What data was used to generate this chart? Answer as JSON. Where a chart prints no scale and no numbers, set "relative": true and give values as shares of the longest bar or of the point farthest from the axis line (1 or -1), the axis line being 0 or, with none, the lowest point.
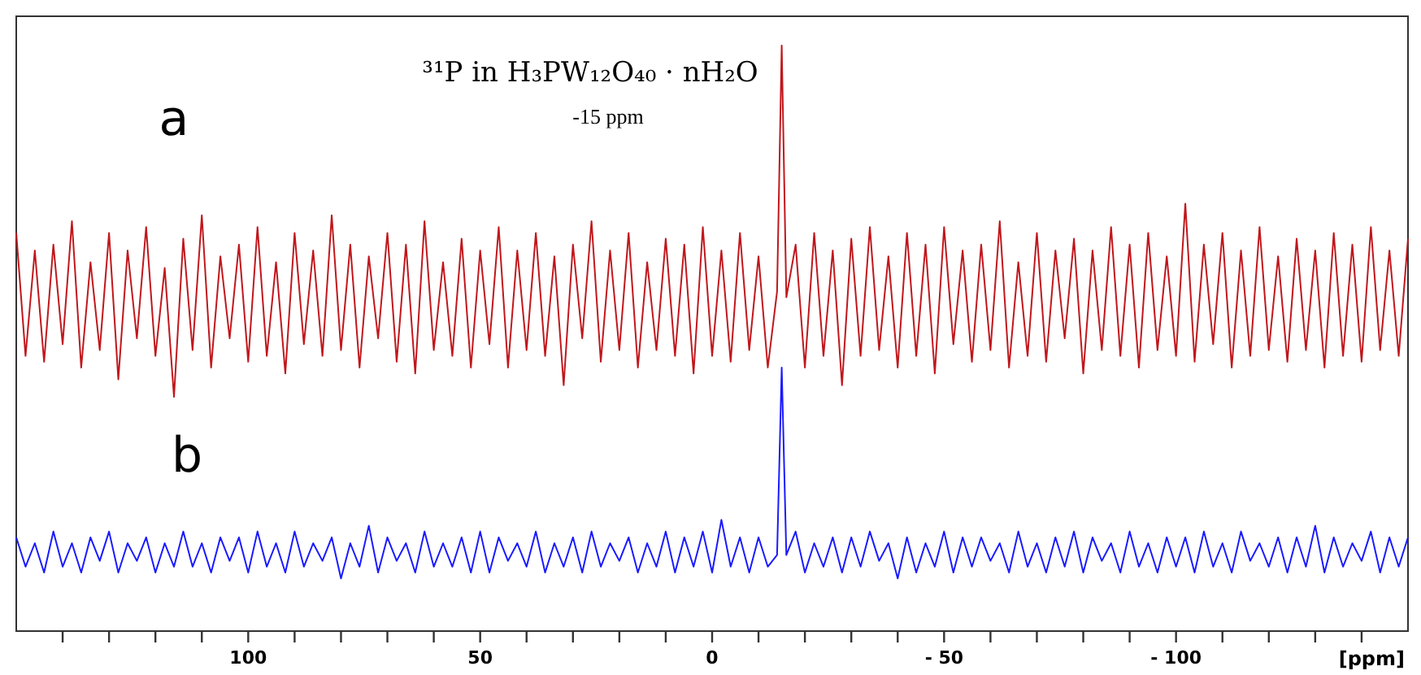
{
  "chart_data": {
    "type": "line",
    "relative": true,
    "title": "³¹P in H₃PW₁₂O₄₀ · nH₂O",
    "annotations": [
      "a",
      "b",
      "-15 ppm"
    ],
    "xlabel": "[ppm]",
    "xlim": [
      150,
      -150
    ],
    "xticks": [
      {
        "value": 140,
        "label": null
      },
      {
        "value": 130,
        "label": null
      },
      {
        "value": 120,
        "label": null
      },
      {
        "value": 110,
        "label": null
      },
      100,
      {
        "value": 90,
        "label": null
      },
      {
        "value": 80,
        "label": null
      },
      {
        "value": 70,
        "label": null
      },
      {
        "value": 60,
        "label": null
      },
      50,
      {
        "value": 40,
        "label": null
      },
      {
        "value": 30,
        "label": null
      },
      {
        "value": 20,
        "label": null
      },
      {
        "value": 10,
        "label": null
      },
      0,
      {
        "value": -10,
        "label": null
      },
      {
        "value": -20,
        "label": null
      },
      {
        "value": -30,
        "label": null
      },
      {
        "value": -40,
        "label": null
      },
      {
        "value": -50,
        "label": "- 50"
      },
      {
        "value": -60,
        "label": null
      },
      {
        "value": -70,
        "label": null
      },
      {
        "value": -80,
        "label": null
      },
      {
        "value": -90,
        "label": null
      },
      {
        "value": -100,
        "label": "- 100"
      },
      {
        "value": -110,
        "label": null
      },
      {
        "value": -120,
        "label": null
      },
      {
        "value": -130,
        "label": null
      },
      {
        "value": -140,
        "label": null
      }
    ],
    "x": [
      150,
      148,
      146,
      144,
      142,
      140,
      138,
      136,
      134,
      132,
      130,
      128,
      126,
      124,
      122,
      120,
      118,
      116,
      114,
      112,
      110,
      108,
      106,
      104,
      102,
      100,
      98,
      96,
      94,
      92,
      90,
      88,
      86,
      84,
      82,
      80,
      78,
      76,
      74,
      72,
      70,
      68,
      66,
      64,
      62,
      60,
      58,
      56,
      54,
      52,
      50,
      48,
      46,
      44,
      42,
      40,
      38,
      36,
      34,
      32,
      30,
      28,
      26,
      24,
      22,
      20,
      18,
      16,
      14,
      12,
      10,
      8,
      6,
      4,
      2,
      0,
      -2,
      -4,
      -6,
      -8,
      -10,
      -12,
      -14,
      -15,
      -16,
      -18,
      -20,
      -22,
      -24,
      -26,
      -28,
      -30,
      -32,
      -34,
      -36,
      -38,
      -40,
      -42,
      -44,
      -46,
      -48,
      -50,
      -52,
      -54,
      -56,
      -58,
      -60,
      -62,
      -64,
      -66,
      -68,
      -70,
      -72,
      -74,
      -76,
      -78,
      -80,
      -82,
      -84,
      -86,
      -88,
      -90,
      -92,
      -94,
      -96,
      -98,
      -100,
      -102,
      -104,
      -106,
      -108,
      -110,
      -112,
      -114,
      -116,
      -118,
      -120,
      -122,
      -124,
      -126,
      -128,
      -130,
      -132,
      -134,
      -136,
      -138,
      -140,
      -142,
      -144,
      -146,
      -148,
      -150
    ],
    "series": [
      {
        "color": "#c0171c",
        "values": [
          0.68,
          0.47,
          0.65,
          0.46,
          0.66,
          0.49,
          0.7,
          0.45,
          0.63,
          0.48,
          0.68,
          0.43,
          0.65,
          0.5,
          0.69,
          0.47,
          0.62,
          0.4,
          0.67,
          0.48,
          0.71,
          0.45,
          0.64,
          0.5,
          0.66,
          0.46,
          0.69,
          0.47,
          0.63,
          0.44,
          0.68,
          0.49,
          0.65,
          0.47,
          0.71,
          0.48,
          0.66,
          0.45,
          0.64,
          0.5,
          0.68,
          0.46,
          0.66,
          0.44,
          0.7,
          0.48,
          0.63,
          0.47,
          0.67,
          0.45,
          0.65,
          0.49,
          0.69,
          0.45,
          0.65,
          0.48,
          0.68,
          0.47,
          0.64,
          0.42,
          0.66,
          0.5,
          0.7,
          0.46,
          0.65,
          0.48,
          0.68,
          0.45,
          0.63,
          0.48,
          0.67,
          0.47,
          0.66,
          0.44,
          0.69,
          0.47,
          0.65,
          0.46,
          0.68,
          0.48,
          0.64,
          0.45,
          0.58,
          1,
          0.57,
          0.66,
          0.45,
          0.68,
          0.47,
          0.65,
          0.42,
          0.67,
          0.47,
          0.69,
          0.48,
          0.64,
          0.45,
          0.68,
          0.47,
          0.66,
          0.44,
          0.69,
          0.49,
          0.65,
          0.46,
          0.66,
          0.48,
          0.7,
          0.45,
          0.63,
          0.47,
          0.68,
          0.46,
          0.65,
          0.5,
          0.67,
          0.44,
          0.65,
          0.48,
          0.69,
          0.47,
          0.66,
          0.45,
          0.68,
          0.48,
          0.64,
          0.47,
          0.73,
          0.46,
          0.66,
          0.49,
          0.68,
          0.45,
          0.65,
          0.47,
          0.69,
          0.48,
          0.64,
          0.46,
          0.67,
          0.48,
          0.65,
          0.45,
          0.68,
          0.47,
          0.66,
          0.46,
          0.69,
          0.48,
          0.65,
          0.47,
          0.67
        ]
      },
      {
        "color": "#1a1aff",
        "values": [
          0.16,
          0.11,
          0.15,
          0.1,
          0.17,
          0.11,
          0.15,
          0.1,
          0.16,
          0.12,
          0.17,
          0.1,
          0.15,
          0.12,
          0.16,
          0.1,
          0.15,
          0.11,
          0.17,
          0.11,
          0.15,
          0.1,
          0.16,
          0.12,
          0.16,
          0.1,
          0.17,
          0.11,
          0.15,
          0.1,
          0.17,
          0.11,
          0.15,
          0.12,
          0.16,
          0.09,
          0.15,
          0.11,
          0.18,
          0.1,
          0.16,
          0.12,
          0.15,
          0.1,
          0.17,
          0.11,
          0.15,
          0.11,
          0.16,
          0.1,
          0.17,
          0.1,
          0.16,
          0.12,
          0.15,
          0.11,
          0.17,
          0.1,
          0.15,
          0.11,
          0.16,
          0.1,
          0.17,
          0.11,
          0.15,
          0.12,
          0.16,
          0.1,
          0.15,
          0.11,
          0.17,
          0.1,
          0.16,
          0.11,
          0.17,
          0.1,
          0.19,
          0.11,
          0.16,
          0.1,
          0.16,
          0.11,
          0.13,
          0.45,
          0.13,
          0.17,
          0.1,
          0.15,
          0.11,
          0.16,
          0.1,
          0.16,
          0.11,
          0.17,
          0.12,
          0.15,
          0.09,
          0.16,
          0.1,
          0.15,
          0.11,
          0.17,
          0.1,
          0.16,
          0.11,
          0.16,
          0.12,
          0.15,
          0.1,
          0.17,
          0.11,
          0.15,
          0.1,
          0.16,
          0.11,
          0.17,
          0.1,
          0.16,
          0.12,
          0.15,
          0.1,
          0.17,
          0.11,
          0.15,
          0.1,
          0.16,
          0.11,
          0.16,
          0.1,
          0.17,
          0.11,
          0.15,
          0.1,
          0.17,
          0.12,
          0.15,
          0.11,
          0.16,
          0.1,
          0.16,
          0.11,
          0.18,
          0.1,
          0.16,
          0.11,
          0.15,
          0.12,
          0.17,
          0.1,
          0.16,
          0.11,
          0.16
        ]
      }
    ]
  }
}
